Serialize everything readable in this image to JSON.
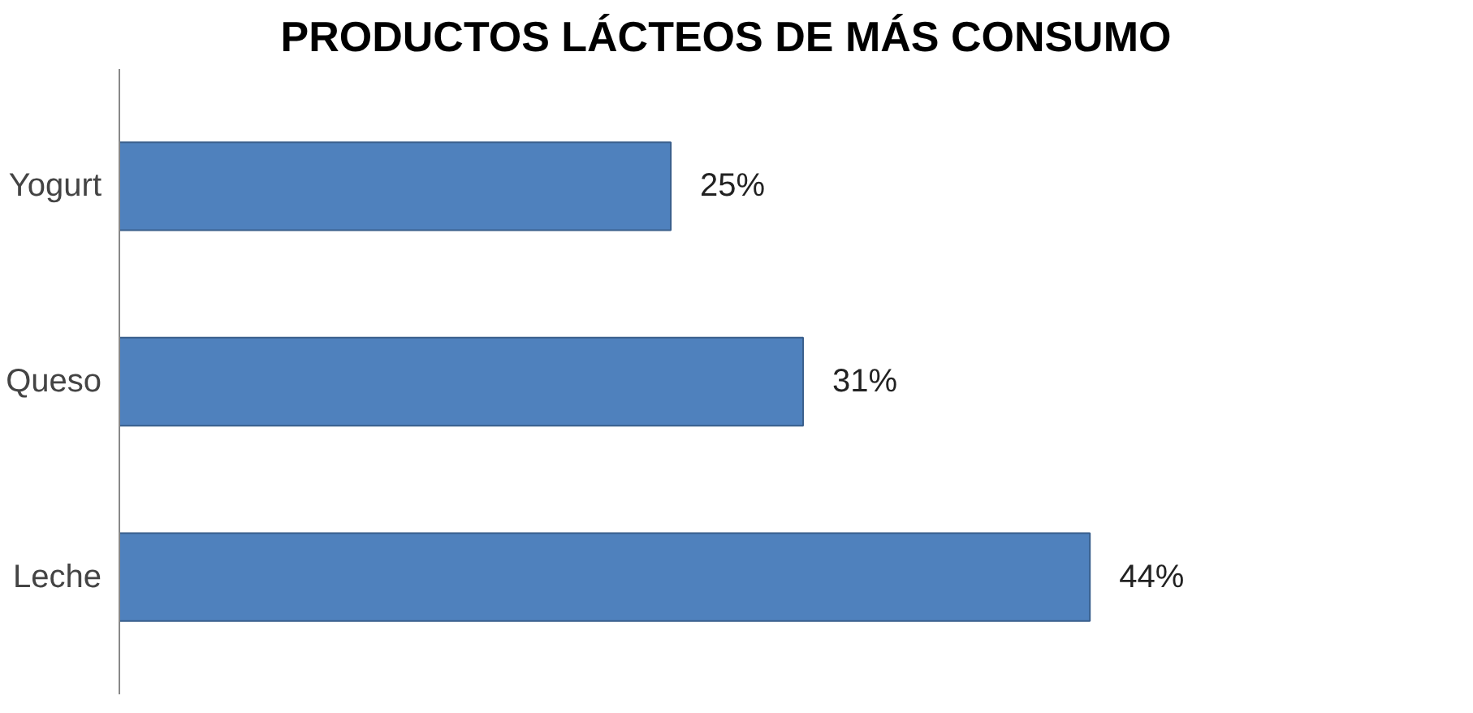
{
  "chart_data": {
    "type": "bar",
    "orientation": "horizontal",
    "title": "PRODUCTOS LÁCTEOS DE MÁS CONSUMO",
    "categories": [
      "Yogurt",
      "Queso",
      "Leche"
    ],
    "values": [
      25,
      31,
      44
    ],
    "value_labels": [
      "25%",
      "31%",
      "44%"
    ],
    "color": "#4f81bd"
  }
}
